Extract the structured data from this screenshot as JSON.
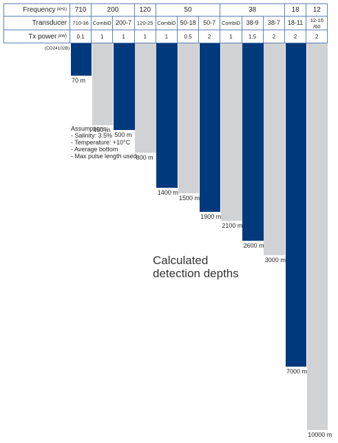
{
  "chart_data": {
    "type": "bar",
    "code": "(CD24102B)",
    "row_labels": {
      "frequency": "Frequency",
      "frequency_unit": "(kHz)",
      "transducer": "Transducer",
      "power": "Tx power",
      "power_unit": "(kW)"
    },
    "frequencies": [
      710,
      200,
      null,
      120,
      50,
      null,
      null,
      38,
      null,
      null,
      18,
      12
    ],
    "categories": [
      "710-36",
      "CombiD",
      "200-7",
      "120-25",
      "CombiD",
      "50-18",
      "50-7",
      "CombiD",
      "38-9",
      "38-7",
      "18-11",
      "12-16\n/60"
    ],
    "tx_power": [
      0.1,
      1,
      1,
      1,
      1,
      0.5,
      2,
      1,
      1.5,
      2,
      2,
      2
    ],
    "values": [
      70,
      450,
      500,
      800,
      1400,
      1500,
      1900,
      2100,
      2600,
      3000,
      7000,
      10000
    ],
    "value_labels": [
      "70 m",
      "450 m",
      "500 m",
      "800 m",
      "1400 m",
      "1500 m",
      "1900 m",
      "2100 m",
      "2600 m",
      "3000 m",
      "7000 m",
      "10000 m"
    ],
    "colors": [
      "#003a7d",
      "#d1d2d4",
      "#003a7d",
      "#d1d2d4",
      "#003a7d",
      "#d1d2d4",
      "#003a7d",
      "#d1d2d4",
      "#003a7d",
      "#d1d2d4",
      "#003a7d",
      "#d1d2d4"
    ],
    "assumptions": [
      "Assumptions:",
      "- Salinity: 3.5%",
      "- Temperature: +10°C",
      "- Average bottom",
      "- Max pulse length used"
    ],
    "annotation": "Calculated detection depths"
  }
}
